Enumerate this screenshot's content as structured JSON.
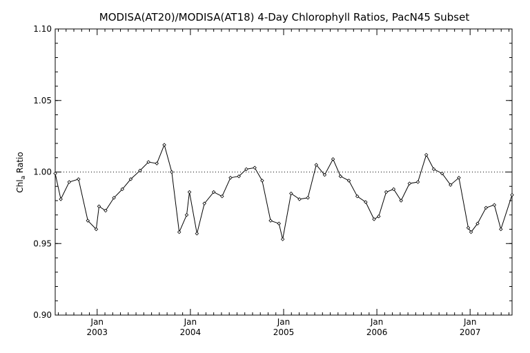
{
  "chart_data": {
    "type": "line",
    "title": "MODISA(AT20)/MODISA(AT18) 4-Day Chlorophyll Ratios, PacN45 Subset",
    "ylabel": "Chl",
    "ylabel_sub": "a",
    "ylabel_suffix": " Ratio",
    "xlabel": "",
    "ylim": [
      0.9,
      1.1
    ],
    "yticks": [
      0.9,
      0.95,
      1.0,
      1.05,
      1.1
    ],
    "ytick_labels": [
      "0.90",
      "0.95",
      "1.00",
      "1.05",
      "1.10"
    ],
    "xlim": [
      2002.55,
      2007.45
    ],
    "xticks": [
      {
        "x": 2003.0,
        "month": "Jan",
        "year": "2003"
      },
      {
        "x": 2004.0,
        "month": "Jan",
        "year": "2004"
      },
      {
        "x": 2005.0,
        "month": "Jan",
        "year": "2005"
      },
      {
        "x": 2006.0,
        "month": "Jan",
        "year": "2006"
      },
      {
        "x": 2007.0,
        "month": "Jan",
        "year": "2007"
      }
    ],
    "reference_line": 1.0,
    "series": [
      {
        "x": [
          2002.55,
          2002.61,
          2002.7,
          2002.8,
          2002.9,
          2002.99,
          2003.02,
          2003.09,
          2003.18,
          2003.27,
          2003.36,
          2003.46,
          2003.55,
          2003.64,
          2003.72,
          2003.8,
          2003.88,
          2003.96,
          2003.99,
          2004.07,
          2004.15,
          2004.25,
          2004.34,
          2004.43,
          2004.52,
          2004.6,
          2004.69,
          2004.77,
          2004.86,
          2004.95,
          2004.99,
          2005.08,
          2005.17,
          2005.26,
          2005.35,
          2005.44,
          2005.53,
          2005.61,
          2005.7,
          2005.79,
          2005.88,
          2005.97,
          2006.02,
          2006.1,
          2006.18,
          2006.26,
          2006.35,
          2006.44,
          2006.53,
          2006.61,
          2006.7,
          2006.79,
          2006.88,
          2006.98,
          2007.01,
          2007.08,
          2007.17,
          2007.26,
          2007.33,
          2007.45
        ],
        "y": [
          0.999,
          0.981,
          0.993,
          0.995,
          0.966,
          0.96,
          0.976,
          0.973,
          0.982,
          0.988,
          0.995,
          1.001,
          1.007,
          1.006,
          1.019,
          1.0,
          0.958,
          0.97,
          0.986,
          0.957,
          0.978,
          0.986,
          0.983,
          0.996,
          0.997,
          1.002,
          1.003,
          0.994,
          0.966,
          0.964,
          0.953,
          0.985,
          0.981,
          0.982,
          1.005,
          0.998,
          1.009,
          0.997,
          0.994,
          0.983,
          0.979,
          0.967,
          0.969,
          0.986,
          0.988,
          0.98,
          0.992,
          0.993,
          1.012,
          1.002,
          0.999,
          0.991,
          0.996,
          0.961,
          0.958,
          0.964,
          0.975,
          0.977,
          0.96,
          0.984
        ]
      }
    ]
  }
}
